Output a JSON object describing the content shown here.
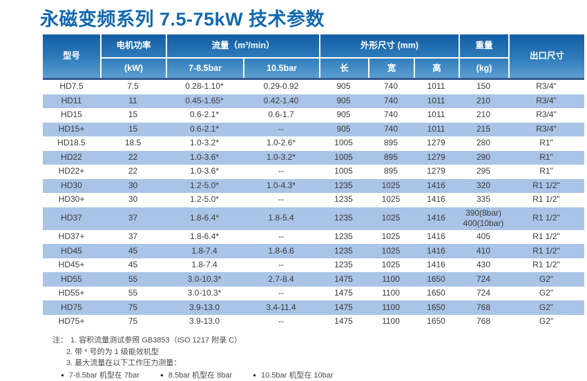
{
  "title": "永磁变频系列 7.5-75kW 技术参数",
  "colors": {
    "title_blue": "#1268b0",
    "header_gradient_top": "#125da4",
    "header_gradient_bottom": "#5c9fd2",
    "header_border_bottom": "#33598f",
    "alt_row_blue": "#a9c4e6",
    "body_text": "#3a3a3a"
  },
  "table": {
    "header": {
      "model": "型号",
      "power_line1": "电机功率",
      "power_line2": "(kW)",
      "flow_group": "流量（m³/min）",
      "flow_sub1": "7-8.5bar",
      "flow_sub2": "10.5bar",
      "dims_group": "外形尺寸 (mm)",
      "dim_length": "长",
      "dim_width": "宽",
      "dim_height": "高",
      "weight_line1": "重量",
      "weight_line2": "(kg)",
      "outlet": "出口尺寸"
    },
    "rows": [
      [
        "HD7.5",
        "7.5",
        "0.28-1.10*",
        "0.29-0.92",
        "905",
        "740",
        "1011",
        "150",
        "R3/4\""
      ],
      [
        "HD11",
        "11",
        "0.45-1.65*",
        "0.42-1.40",
        "905",
        "740",
        "1011",
        "210",
        "R3/4\""
      ],
      [
        "HD15",
        "15",
        "0.6-2.1*",
        "0.6-1.7",
        "905",
        "740",
        "1011",
        "210",
        "R3/4\""
      ],
      [
        "HD15+",
        "15",
        "0.6-2.1*",
        "--",
        "905",
        "740",
        "1011",
        "215",
        "R3/4\""
      ],
      [
        "HD18.5",
        "18.5",
        "1.0-3.2*",
        "1.0-2.6*",
        "1005",
        "895",
        "1279",
        "280",
        "R1\""
      ],
      [
        "HD22",
        "22",
        "1.0-3.6*",
        "1.0-3.2*",
        "1005",
        "895",
        "1279",
        "290",
        "R1\""
      ],
      [
        "HD22+",
        "22",
        "1.0-3.6*",
        "--",
        "1005",
        "895",
        "1279",
        "295",
        "R1\""
      ],
      [
        "HD30",
        "30",
        "1.2-5.0*",
        "1.0-4.3*",
        "1235",
        "1025",
        "1416",
        "320",
        "R1 1/2\""
      ],
      [
        "HD30+",
        "30",
        "1.2-5.0*",
        "--",
        "1235",
        "1025",
        "1416",
        "335",
        "R1 1/2\""
      ],
      [
        "HD37",
        "37",
        "1.8-6.4*",
        "1.8-5.4",
        "1235",
        "1025",
        "1416",
        "390(8bar)\n400(10bar)",
        "R1 1/2\""
      ],
      [
        "HD37+",
        "37",
        "1.8-6.4*",
        "--",
        "1235",
        "1025",
        "1416",
        "405",
        "R1 1/2\""
      ],
      [
        "HD45",
        "45",
        "1.8-7.4",
        "1.8-6.6",
        "1235",
        "1025",
        "1416",
        "410",
        "R1 1/2\""
      ],
      [
        "HD45+",
        "45",
        "1.8-7.4",
        "--",
        "1235",
        "1025",
        "1416",
        "430",
        "R1 1/2\""
      ],
      [
        "HD55",
        "55",
        "3.0-10.3*",
        "2.7-8.4",
        "1475",
        "1100",
        "1650",
        "724",
        "G2\""
      ],
      [
        "HD55+",
        "55",
        "3.0-10.3*",
        "--",
        "1475",
        "1100",
        "1650",
        "724",
        "G2\""
      ],
      [
        "HD75",
        "75",
        "3.9-13.0",
        "3.4-11.4",
        "1475",
        "1100",
        "1650",
        "768",
        "G2\""
      ],
      [
        "HD75+",
        "75",
        "3.9-13.0",
        "--",
        "1475",
        "1100",
        "1650",
        "768",
        "G2\""
      ]
    ]
  },
  "notes": {
    "label": "注：",
    "items": [
      "1. 容积流量测试参照 GB3853（ISO 1217 附录 C）",
      "2. 带 * 号的为 1 级能效机型",
      "3. 最大流量在以下工作压力测量："
    ],
    "bullets": [
      "7-8.5bar 机型在 7bar",
      "8.5bar 机型在 8bar",
      "10.5bar 机型在 10bar"
    ]
  },
  "icons": {
    "bullet": "●"
  }
}
